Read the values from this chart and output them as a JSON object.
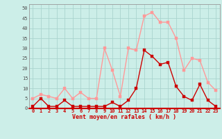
{
  "hours": [
    0,
    1,
    2,
    3,
    4,
    5,
    6,
    7,
    8,
    9,
    10,
    11,
    12,
    13,
    14,
    15,
    16,
    17,
    18,
    19,
    20,
    21,
    22,
    23
  ],
  "wind_avg": [
    1,
    5,
    1,
    1,
    4,
    1,
    1,
    1,
    1,
    1,
    3,
    1,
    4,
    10,
    29,
    26,
    22,
    23,
    11,
    6,
    4,
    12,
    4,
    1
  ],
  "wind_gust": [
    5,
    7,
    6,
    5,
    10,
    5,
    8,
    5,
    5,
    30,
    19,
    6,
    30,
    29,
    46,
    48,
    43,
    43,
    35,
    19,
    25,
    24,
    13,
    9
  ],
  "avg_color": "#cc0000",
  "gust_color": "#ff9999",
  "bg_color": "#cceee8",
  "grid_color": "#aad4ce",
  "xlabel": "Vent moyen/en rafales ( km/h )",
  "ylabel_ticks": [
    0,
    5,
    10,
    15,
    20,
    25,
    30,
    35,
    40,
    45,
    50
  ],
  "ylim": [
    0,
    52
  ],
  "xlim": [
    -0.5,
    23.5
  ],
  "marker_size": 2.5,
  "line_width": 1.0,
  "tick_fontsize": 5.0,
  "xlabel_fontsize": 6.0
}
